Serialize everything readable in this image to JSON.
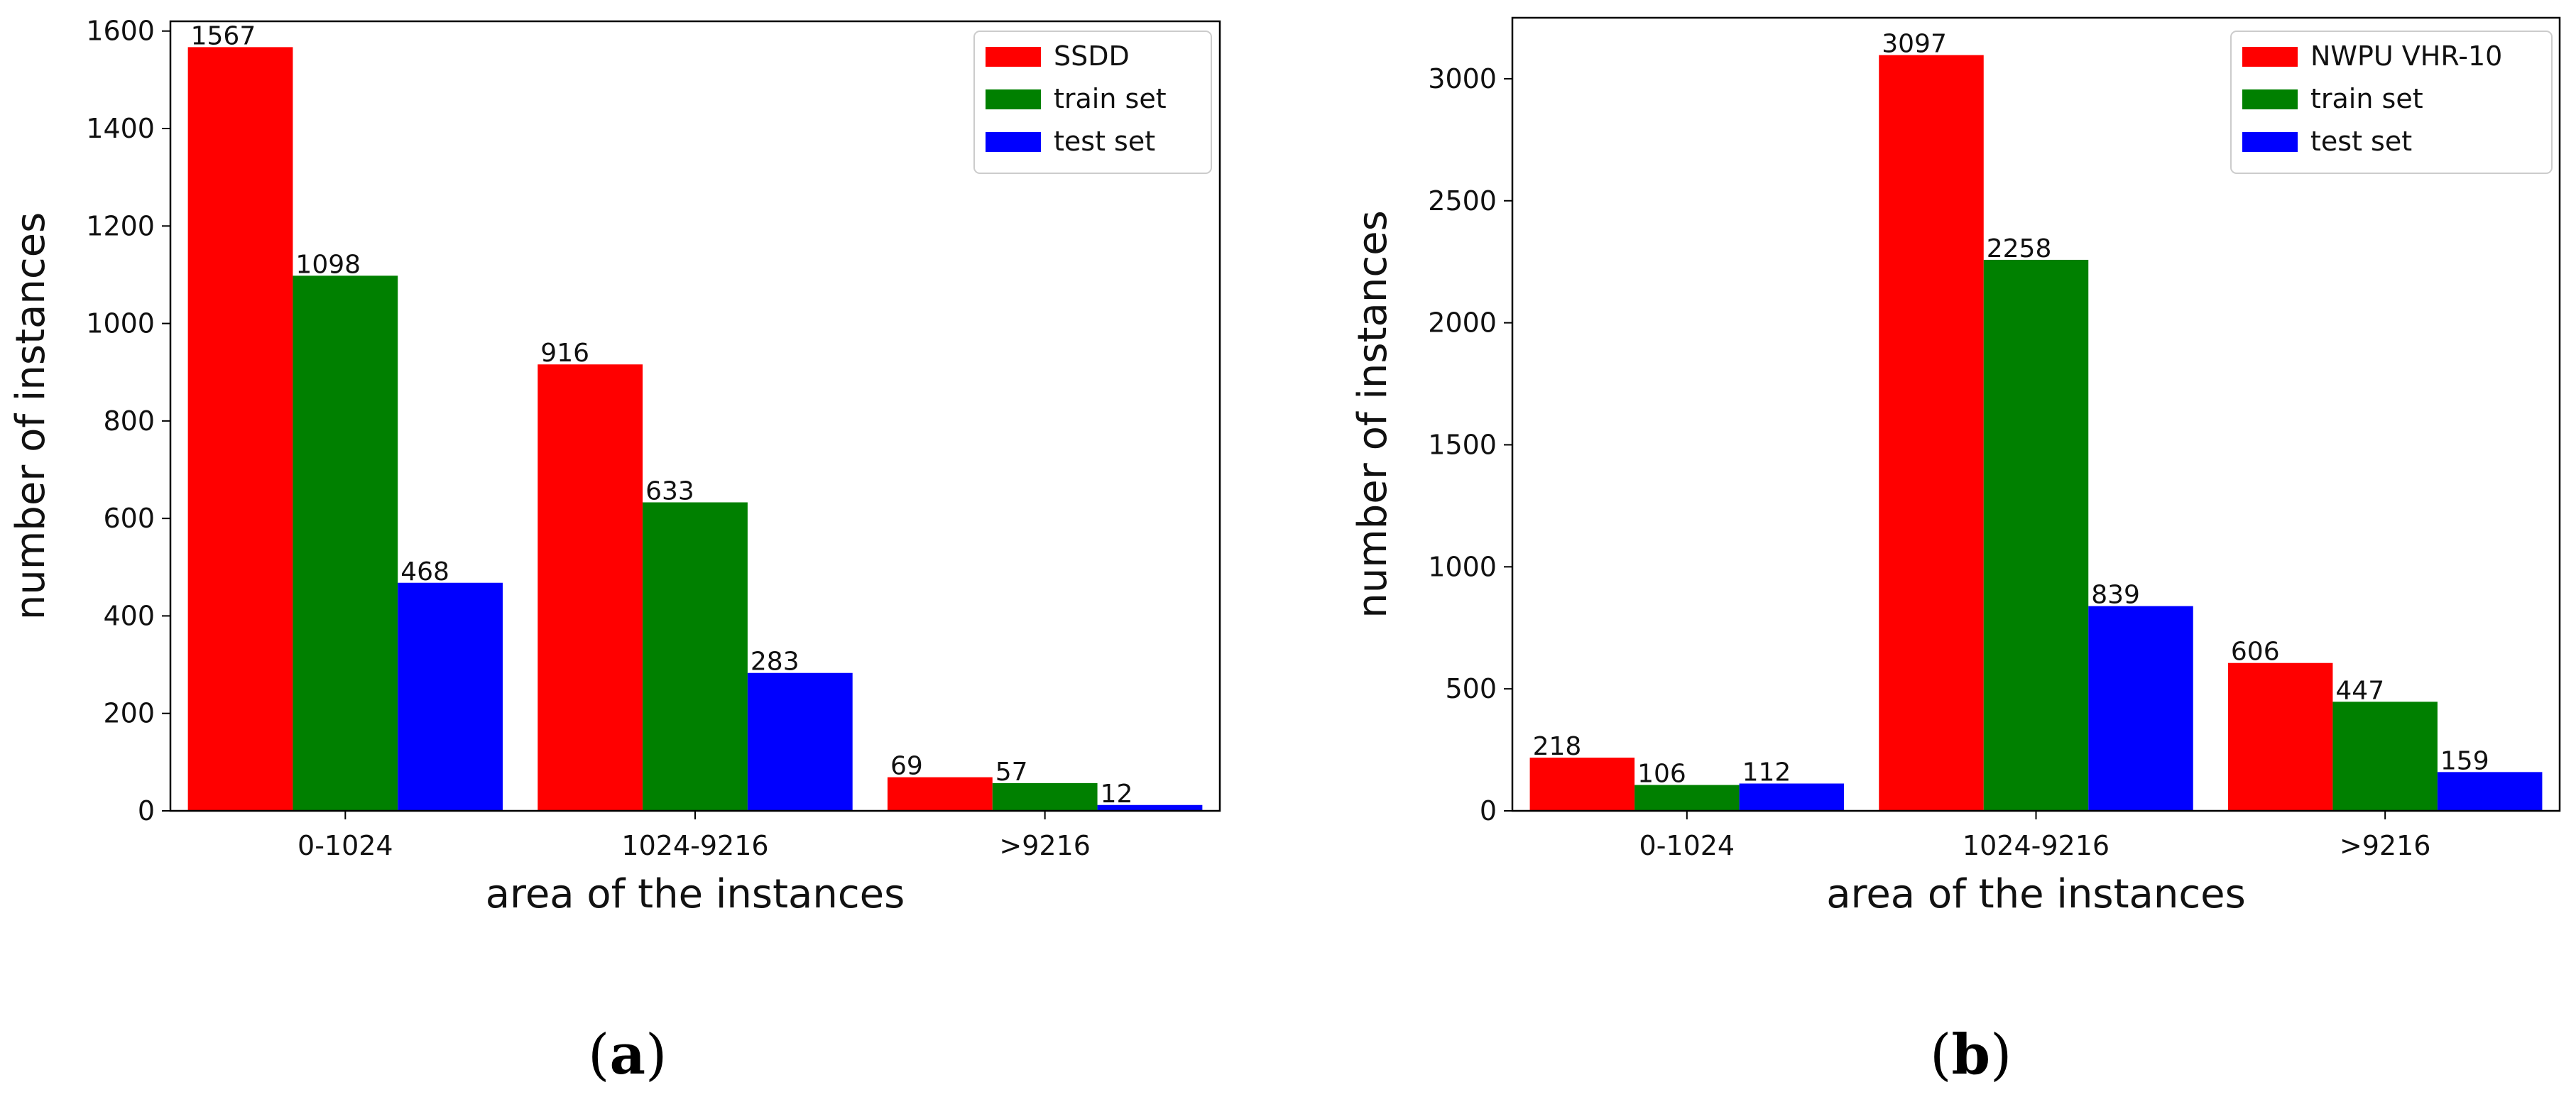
{
  "chart_data": [
    {
      "type": "bar",
      "categories": [
        "0-1024",
        "1024-9216",
        ">9216"
      ],
      "series": [
        {
          "name": "SSDD",
          "color": "#ff0000",
          "values": [
            1567,
            916,
            69
          ]
        },
        {
          "name": "train set",
          "color": "#008000",
          "values": [
            1098,
            633,
            57
          ]
        },
        {
          "name": "test set",
          "color": "#0000ff",
          "values": [
            468,
            283,
            12
          ]
        }
      ],
      "xlabel": "area of the instances",
      "ylabel": "number of instances",
      "ylim": [
        0,
        1620
      ],
      "yticks": [
        0,
        200,
        400,
        600,
        800,
        1000,
        1200,
        1400,
        1600
      ],
      "legend": "top-right",
      "grid": false,
      "caption": "a"
    },
    {
      "type": "bar",
      "categories": [
        "0-1024",
        "1024-9216",
        ">9216"
      ],
      "series": [
        {
          "name": "NWPU VHR-10",
          "color": "#ff0000",
          "values": [
            218,
            3097,
            606
          ]
        },
        {
          "name": "train set",
          "color": "#008000",
          "values": [
            106,
            2258,
            447
          ]
        },
        {
          "name": "test set",
          "color": "#0000ff",
          "values": [
            112,
            839,
            159
          ]
        }
      ],
      "xlabel": "area of the instances",
      "ylabel": "number of instances",
      "ylim": [
        0,
        3250
      ],
      "yticks": [
        0,
        500,
        1000,
        1500,
        2000,
        2500,
        3000
      ],
      "legend": "top-right",
      "grid": false,
      "caption": "b"
    }
  ]
}
